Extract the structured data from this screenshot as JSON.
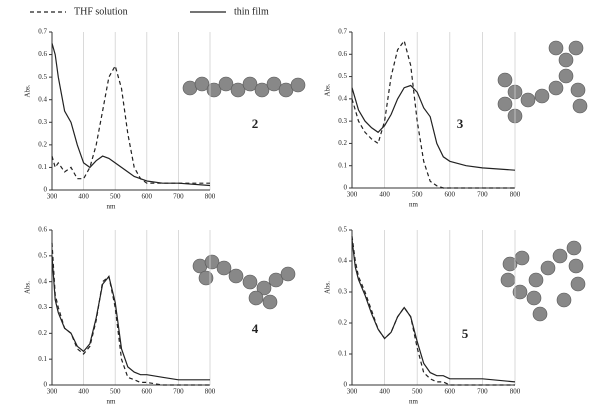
{
  "chart_data": [
    {
      "type": "line",
      "xlabel": "nm",
      "ylabel": "Abs.",
      "label": "2",
      "x": [
        300,
        310,
        320,
        340,
        360,
        380,
        400,
        420,
        440,
        460,
        480,
        500,
        520,
        540,
        560,
        580,
        600,
        650,
        700,
        800
      ],
      "series": [
        {
          "name": "THF solution",
          "style": "dashed",
          "color": "#222",
          "values": [
            0.15,
            0.1,
            0.12,
            0.08,
            0.1,
            0.05,
            0.05,
            0.1,
            0.2,
            0.35,
            0.5,
            0.55,
            0.45,
            0.25,
            0.1,
            0.05,
            0.03,
            0.03,
            0.03,
            0.03
          ]
        },
        {
          "name": "thin film",
          "style": "solid",
          "color": "#222",
          "values": [
            0.65,
            0.6,
            0.5,
            0.35,
            0.3,
            0.2,
            0.12,
            0.1,
            0.13,
            0.15,
            0.14,
            0.12,
            0.1,
            0.08,
            0.06,
            0.05,
            0.04,
            0.03,
            0.03,
            0.02
          ]
        }
      ],
      "xlim": [
        300,
        800
      ],
      "xticks": [
        300,
        400,
        500,
        600,
        700,
        800
      ],
      "ylim": [
        0,
        0.7
      ],
      "yticks": [
        0,
        0.1,
        0.2,
        0.3,
        0.4,
        0.5,
        0.6,
        0.7
      ],
      "grid": "x"
    },
    {
      "type": "line",
      "xlabel": "nm",
      "ylabel": "Abs.",
      "label": "3",
      "x": [
        300,
        310,
        320,
        340,
        360,
        380,
        400,
        420,
        440,
        460,
        480,
        500,
        520,
        540,
        560,
        580,
        600,
        650,
        700,
        800
      ],
      "series": [
        {
          "style": "dashed",
          "color": "#222",
          "values": [
            0.4,
            0.35,
            0.3,
            0.25,
            0.22,
            0.2,
            0.3,
            0.5,
            0.62,
            0.66,
            0.55,
            0.3,
            0.12,
            0.03,
            0.01,
            0,
            0,
            0,
            0,
            0
          ]
        },
        {
          "style": "solid",
          "color": "#222",
          "values": [
            0.45,
            0.4,
            0.35,
            0.3,
            0.27,
            0.25,
            0.28,
            0.33,
            0.4,
            0.45,
            0.46,
            0.43,
            0.36,
            0.32,
            0.2,
            0.14,
            0.12,
            0.1,
            0.09,
            0.08
          ]
        }
      ],
      "xlim": [
        300,
        800
      ],
      "xticks": [
        300,
        400,
        500,
        600,
        700,
        800
      ],
      "ylim": [
        0,
        0.7
      ],
      "yticks": [
        0,
        0.1,
        0.2,
        0.3,
        0.4,
        0.5,
        0.6,
        0.7
      ],
      "grid": "x"
    },
    {
      "type": "line",
      "xlabel": "nm",
      "ylabel": "Abs.",
      "label": "4",
      "x": [
        300,
        310,
        320,
        340,
        360,
        380,
        400,
        420,
        440,
        460,
        480,
        500,
        520,
        540,
        560,
        580,
        600,
        650,
        700,
        800
      ],
      "series": [
        {
          "style": "dashed",
          "color": "#222",
          "values": [
            0.55,
            0.35,
            0.3,
            0.22,
            0.2,
            0.14,
            0.12,
            0.15,
            0.25,
            0.4,
            0.42,
            0.3,
            0.1,
            0.03,
            0.02,
            0.01,
            0.01,
            0,
            0,
            0
          ]
        },
        {
          "style": "solid",
          "color": "#222",
          "values": [
            0.5,
            0.33,
            0.28,
            0.22,
            0.2,
            0.15,
            0.13,
            0.16,
            0.26,
            0.39,
            0.42,
            0.32,
            0.14,
            0.07,
            0.05,
            0.04,
            0.04,
            0.03,
            0.02,
            0.02
          ]
        }
      ],
      "xlim": [
        300,
        800
      ],
      "xticks": [
        300,
        400,
        500,
        600,
        700,
        800
      ],
      "ylim": [
        0,
        0.6
      ],
      "yticks": [
        0,
        0.1,
        0.2,
        0.3,
        0.4,
        0.5,
        0.6
      ],
      "grid": "x"
    },
    {
      "type": "line",
      "xlabel": "nm",
      "ylabel": "Abs.",
      "label": "5",
      "x": [
        300,
        310,
        320,
        340,
        360,
        380,
        400,
        420,
        440,
        460,
        480,
        500,
        520,
        540,
        560,
        580,
        600,
        650,
        700,
        800
      ],
      "series": [
        {
          "style": "dashed",
          "color": "#222",
          "values": [
            0.48,
            0.4,
            0.35,
            0.3,
            0.24,
            0.18,
            0.15,
            0.17,
            0.22,
            0.25,
            0.22,
            0.12,
            0.04,
            0.02,
            0.01,
            0.01,
            0,
            0,
            0,
            0
          ]
        },
        {
          "style": "solid",
          "color": "#222",
          "values": [
            0.47,
            0.38,
            0.34,
            0.29,
            0.23,
            0.18,
            0.15,
            0.17,
            0.22,
            0.25,
            0.22,
            0.14,
            0.07,
            0.04,
            0.03,
            0.03,
            0.02,
            0.02,
            0.02,
            0.01
          ]
        }
      ],
      "xlim": [
        300,
        800
      ],
      "xticks": [
        300,
        400,
        500,
        600,
        700,
        800
      ],
      "ylim": [
        0,
        0.5
      ],
      "yticks": [
        0,
        0.1,
        0.2,
        0.3,
        0.4,
        0.5
      ],
      "grid": "x"
    }
  ]
}
